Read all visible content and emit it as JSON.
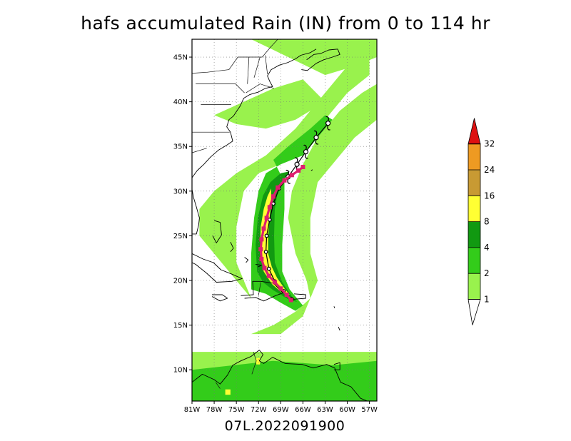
{
  "title": "hafs accumulated Rain (IN) from 0 to 114 hr",
  "subtitle": "07L.2022091900",
  "map": {
    "lon_range": [
      -81,
      -56
    ],
    "lat_range": [
      6.5,
      47
    ],
    "lon_ticks": [
      {
        "value": -81,
        "label": "81W"
      },
      {
        "value": -78,
        "label": "78W"
      },
      {
        "value": -75,
        "label": "75W"
      },
      {
        "value": -72,
        "label": "72W"
      },
      {
        "value": -69,
        "label": "69W"
      },
      {
        "value": -66,
        "label": "66W"
      },
      {
        "value": -63,
        "label": "63W"
      },
      {
        "value": -60,
        "label": "60W"
      },
      {
        "value": -57,
        "label": "57W"
      }
    ],
    "lat_ticks": [
      {
        "value": 10,
        "label": "10N"
      },
      {
        "value": 15,
        "label": "15N"
      },
      {
        "value": 20,
        "label": "20N"
      },
      {
        "value": 25,
        "label": "25N"
      },
      {
        "value": 30,
        "label": "30N"
      },
      {
        "value": 35,
        "label": "35N"
      },
      {
        "value": 40,
        "label": "40N"
      },
      {
        "value": 45,
        "label": "45N"
      }
    ],
    "grid": true
  },
  "colorbar": {
    "levels": [
      {
        "label": "1",
        "color": "#99f24d"
      },
      {
        "label": "2",
        "color": "#33cc1a"
      },
      {
        "label": "4",
        "color": "#119911"
      },
      {
        "label": "8",
        "color": "#ffff33"
      },
      {
        "label": "16",
        "color": "#c89a33"
      },
      {
        "label": "24",
        "color": "#ee9a22"
      },
      {
        "label": "32",
        "color": "#dd1111"
      }
    ]
  },
  "track": {
    "color": "#dd1f6e",
    "points": [
      {
        "lon": -67.6,
        "lat": 17.8
      },
      {
        "lon": -68.2,
        "lat": 18.4
      },
      {
        "lon": -69.0,
        "lat": 19.1
      },
      {
        "lon": -69.8,
        "lat": 19.8
      },
      {
        "lon": -70.6,
        "lat": 20.5
      },
      {
        "lon": -71.2,
        "lat": 21.4
      },
      {
        "lon": -71.6,
        "lat": 22.4
      },
      {
        "lon": -71.7,
        "lat": 23.5
      },
      {
        "lon": -71.6,
        "lat": 24.6
      },
      {
        "lon": -71.3,
        "lat": 25.8
      },
      {
        "lon": -70.9,
        "lat": 27.0
      },
      {
        "lon": -70.5,
        "lat": 28.2
      },
      {
        "lon": -70.0,
        "lat": 29.4
      },
      {
        "lon": -69.4,
        "lat": 30.4
      },
      {
        "lon": -68.5,
        "lat": 31.2
      },
      {
        "lon": -67.5,
        "lat": 31.8
      },
      {
        "lon": -66.6,
        "lat": 32.3
      },
      {
        "lon": -66.0,
        "lat": 32.7
      }
    ]
  },
  "best_track": {
    "color": "#000000",
    "points": [
      {
        "lon": -67.5,
        "lat": 17.9
      },
      {
        "lon": -68.6,
        "lat": 18.8
      },
      {
        "lon": -69.8,
        "lat": 19.9
      },
      {
        "lon": -70.6,
        "lat": 21.3
      },
      {
        "lon": -71.0,
        "lat": 23.2
      },
      {
        "lon": -70.9,
        "lat": 25.0
      },
      {
        "lon": -70.5,
        "lat": 26.8
      },
      {
        "lon": -70.0,
        "lat": 28.6
      },
      {
        "lon": -69.2,
        "lat": 30.3
      },
      {
        "lon": -68.0,
        "lat": 31.6
      },
      {
        "lon": -66.8,
        "lat": 33.0
      },
      {
        "lon": -65.6,
        "lat": 34.4
      },
      {
        "lon": -64.2,
        "lat": 36.0
      },
      {
        "lon": -62.6,
        "lat": 37.6
      }
    ]
  },
  "rain_bands": [
    {
      "level": "1",
      "poly": [
        [
          -81,
          12
        ],
        [
          -56,
          12
        ],
        [
          -56,
          6.5
        ],
        [
          -81,
          6.5
        ]
      ]
    },
    {
      "level": "2",
      "poly": [
        [
          -81,
          10
        ],
        [
          -70,
          11
        ],
        [
          -62,
          10.5
        ],
        [
          -56,
          11
        ],
        [
          -56,
          6.5
        ],
        [
          -81,
          6.5
        ]
      ]
    },
    {
      "level": "1",
      "poly": [
        [
          -73,
          14
        ],
        [
          -70,
          15
        ],
        [
          -67,
          16.5
        ],
        [
          -65,
          18
        ],
        [
          -65.5,
          20
        ],
        [
          -67,
          23
        ],
        [
          -68,
          27
        ],
        [
          -67.5,
          30
        ],
        [
          -66,
          33
        ],
        [
          -64,
          36
        ],
        [
          -61,
          39
        ],
        [
          -58,
          41
        ],
        [
          -56,
          42
        ],
        [
          -56,
          38
        ],
        [
          -59,
          36
        ],
        [
          -62,
          33
        ],
        [
          -64,
          31
        ],
        [
          -65,
          27
        ],
        [
          -65,
          23
        ],
        [
          -64,
          20
        ],
        [
          -66,
          16
        ],
        [
          -69,
          14
        ]
      ]
    },
    {
      "level": "1",
      "poly": [
        [
          -73,
          18
        ],
        [
          -75,
          22
        ],
        [
          -75,
          26
        ],
        [
          -74,
          30
        ],
        [
          -72,
          32
        ],
        [
          -69,
          33
        ],
        [
          -66,
          35
        ],
        [
          -63,
          38
        ],
        [
          -60,
          41
        ],
        [
          -57,
          43
        ],
        [
          -57,
          45
        ],
        [
          -60,
          44
        ],
        [
          -64,
          40
        ],
        [
          -67,
          37
        ],
        [
          -71,
          34
        ],
        [
          -75,
          32
        ],
        [
          -78,
          30
        ],
        [
          -80,
          28
        ],
        [
          -80,
          25
        ],
        [
          -77,
          22
        ],
        [
          -74,
          19
        ]
      ]
    },
    {
      "level": "1",
      "poly": [
        [
          -81,
          47
        ],
        [
          -73,
          47
        ],
        [
          -68,
          45
        ],
        [
          -63,
          43
        ],
        [
          -59,
          44
        ],
        [
          -56,
          45
        ],
        [
          -56,
          47
        ]
      ]
    },
    {
      "level": "1",
      "poly": [
        [
          -78,
          38.5
        ],
        [
          -74,
          40
        ],
        [
          -70,
          41.5
        ],
        [
          -66,
          42.5
        ],
        [
          -63,
          40
        ],
        [
          -67,
          38
        ],
        [
          -71,
          37
        ],
        [
          -75,
          37.5
        ]
      ]
    },
    {
      "level": "2",
      "poly": [
        [
          -73,
          19
        ],
        [
          -73,
          23
        ],
        [
          -72.6,
          27
        ],
        [
          -72,
          30
        ],
        [
          -71,
          32
        ],
        [
          -69,
          33
        ],
        [
          -66,
          34
        ],
        [
          -64,
          36
        ],
        [
          -62,
          38
        ],
        [
          -63,
          38.5
        ],
        [
          -65,
          37
        ],
        [
          -68,
          35
        ],
        [
          -70,
          33.5
        ],
        [
          -68.5,
          31
        ],
        [
          -68.5,
          28
        ],
        [
          -68.8,
          24
        ],
        [
          -68.8,
          21
        ],
        [
          -67.8,
          19
        ],
        [
          -66,
          17.2
        ],
        [
          -67,
          16.6
        ],
        [
          -69,
          17.5
        ],
        [
          -71,
          18.5
        ]
      ]
    },
    {
      "level": "4",
      "poly": [
        [
          -72.2,
          21
        ],
        [
          -72.4,
          24
        ],
        [
          -72.1,
          27
        ],
        [
          -71.4,
          29.5
        ],
        [
          -70.4,
          31
        ],
        [
          -69,
          32
        ],
        [
          -67.8,
          32.2
        ],
        [
          -69.3,
          30.5
        ],
        [
          -69.8,
          28
        ],
        [
          -69.9,
          25
        ],
        [
          -69.8,
          22
        ],
        [
          -68.8,
          19.8
        ],
        [
          -67.5,
          18.2
        ],
        [
          -66.8,
          17.6
        ],
        [
          -68,
          17.9
        ],
        [
          -70,
          18.9
        ],
        [
          -71.4,
          19.8
        ]
      ]
    },
    {
      "level": "8",
      "poly": [
        [
          -71.8,
          23
        ],
        [
          -71.7,
          26
        ],
        [
          -71.3,
          28
        ],
        [
          -70.8,
          29.4
        ],
        [
          -70.3,
          30.3
        ],
        [
          -70.3,
          29
        ],
        [
          -70.5,
          27
        ],
        [
          -70.7,
          25
        ],
        [
          -70.7,
          23
        ],
        [
          -70.2,
          21.5
        ],
        [
          -69.5,
          20.3
        ],
        [
          -68.4,
          19
        ],
        [
          -67.8,
          18.4
        ],
        [
          -68.8,
          18.6
        ],
        [
          -70.2,
          19.6
        ],
        [
          -71.3,
          21
        ]
      ]
    },
    {
      "level": "8",
      "poly": [
        [
          -76.5,
          7.2
        ],
        [
          -75.8,
          7.2
        ],
        [
          -75.8,
          7.8
        ],
        [
          -76.5,
          7.8
        ]
      ]
    },
    {
      "level": "8",
      "poly": [
        [
          -72.3,
          10.6
        ],
        [
          -71.8,
          10.6
        ],
        [
          -71.8,
          11.3
        ],
        [
          -72.3,
          11.3
        ]
      ]
    }
  ],
  "coastlines": [
    [
      [
        -81,
        25.2
      ],
      [
        -80.4,
        25.2
      ],
      [
        -80.1,
        26.2
      ],
      [
        -80.0,
        27.0
      ],
      [
        -80.4,
        28.2
      ],
      [
        -80.8,
        29.3
      ],
      [
        -81,
        30.2
      ]
    ],
    [
      [
        -81,
        31.5
      ],
      [
        -80.3,
        32.3
      ],
      [
        -79.4,
        33.0
      ],
      [
        -78.5,
        33.8
      ],
      [
        -77.4,
        34.6
      ],
      [
        -76.2,
        35.2
      ],
      [
        -75.5,
        35.6
      ],
      [
        -75.8,
        36.6
      ],
      [
        -76.3,
        37.2
      ],
      [
        -76.0,
        38.0
      ],
      [
        -75.4,
        38.4
      ],
      [
        -75.0,
        38.9
      ],
      [
        -74.5,
        39.5
      ],
      [
        -74.0,
        40.4
      ],
      [
        -73.2,
        40.8
      ],
      [
        -72.0,
        41.1
      ],
      [
        -71.1,
        41.5
      ],
      [
        -70.1,
        41.7
      ],
      [
        -70.5,
        42.3
      ],
      [
        -70.8,
        42.9
      ],
      [
        -70.3,
        43.6
      ],
      [
        -69.2,
        44.1
      ],
      [
        -68.0,
        44.4
      ],
      [
        -67.0,
        44.8
      ],
      [
        -66.3,
        45.2
      ],
      [
        -65.0,
        45.5
      ],
      [
        -64.2,
        45.9
      ]
    ],
    [
      [
        -66.2,
        43.6
      ],
      [
        -65.4,
        43.5
      ],
      [
        -64.2,
        44.3
      ],
      [
        -63.2,
        44.7
      ],
      [
        -62.0,
        45.0
      ],
      [
        -61.0,
        45.3
      ],
      [
        -61.3,
        45.9
      ],
      [
        -62.5,
        45.8
      ],
      [
        -63.6,
        45.4
      ],
      [
        -64.5,
        45.3
      ],
      [
        -65.5,
        44.7
      ]
    ],
    [
      [
        -81,
        23.0
      ],
      [
        -79.5,
        22.4
      ],
      [
        -78.1,
        22.0
      ],
      [
        -77.1,
        21.2
      ],
      [
        -75.6,
        20.7
      ],
      [
        -74.2,
        20.2
      ],
      [
        -75.6,
        19.9
      ],
      [
        -77.7,
        19.8
      ],
      [
        -79.0,
        20.8
      ],
      [
        -80.5,
        21.8
      ],
      [
        -81,
        22.0
      ]
    ],
    [
      [
        -74.4,
        18.3
      ],
      [
        -72.7,
        18.4
      ],
      [
        -72.8,
        19.9
      ],
      [
        -71.7,
        19.9
      ],
      [
        -70.0,
        19.7
      ],
      [
        -68.7,
        18.6
      ],
      [
        -69.7,
        18.3
      ],
      [
        -71.3,
        17.7
      ],
      [
        -72.4,
        18.1
      ],
      [
        -73.9,
        18.0
      ]
    ],
    [
      [
        -78.3,
        18.4
      ],
      [
        -76.9,
        18.4
      ],
      [
        -76.2,
        18.0
      ],
      [
        -77.2,
        17.7
      ],
      [
        -78.3,
        18.2
      ]
    ],
    [
      [
        -67.2,
        18.5
      ],
      [
        -65.6,
        18.4
      ],
      [
        -65.6,
        18.0
      ],
      [
        -67.2,
        17.9
      ]
    ],
    [
      [
        -81,
        8.6
      ],
      [
        -79.6,
        9.5
      ],
      [
        -78.0,
        8.9
      ],
      [
        -77.2,
        8.4
      ],
      [
        -76.2,
        9.4
      ],
      [
        -75.5,
        10.5
      ],
      [
        -74.4,
        11.0
      ],
      [
        -73.0,
        11.5
      ],
      [
        -71.9,
        12.2
      ],
      [
        -71.4,
        11.7
      ],
      [
        -71.9,
        11.0
      ],
      [
        -71.3,
        10.7
      ],
      [
        -70.1,
        11.4
      ],
      [
        -68.4,
        10.7
      ],
      [
        -66.1,
        10.6
      ],
      [
        -64.6,
        10.2
      ],
      [
        -62.8,
        10.6
      ],
      [
        -61.7,
        10.2
      ],
      [
        -60.9,
        8.6
      ],
      [
        -59.5,
        8.1
      ],
      [
        -58.2,
        6.8
      ],
      [
        -57.3,
        6.5
      ]
    ],
    [
      [
        -61.8,
        10.0
      ],
      [
        -61.0,
        10.0
      ],
      [
        -61.0,
        10.8
      ],
      [
        -61.8,
        10.6
      ]
    ],
    [
      [
        -78.0,
        26.7
      ],
      [
        -77.2,
        26.5
      ],
      [
        -77.0,
        25.1
      ],
      [
        -77.7,
        24.2
      ],
      [
        -78.2,
        25.0
      ]
    ],
    [
      [
        -75.8,
        24.3
      ],
      [
        -75.4,
        23.6
      ],
      [
        -75.8,
        23.2
      ]
    ],
    [
      [
        -72.4,
        21.8
      ],
      [
        -71.6,
        21.7
      ],
      [
        -72.1,
        21.5
      ]
    ],
    [
      [
        -73.9,
        22.6
      ],
      [
        -73.4,
        22.3
      ],
      [
        -73.7,
        22.0
      ]
    ],
    [
      [
        -61.8,
        17.1
      ],
      [
        -61.7,
        16.9
      ]
    ],
    [
      [
        -61.2,
        14.8
      ],
      [
        -61.0,
        14.4
      ]
    ],
    [
      [
        -64.9,
        32.3
      ],
      [
        -64.7,
        32.4
      ]
    ]
  ],
  "boundaries": [
    [
      [
        -81,
        43.2
      ],
      [
        -79.0,
        43.3
      ],
      [
        -76.0,
        43.6
      ],
      [
        -74.8,
        45.0
      ],
      [
        -71.5,
        45.0
      ],
      [
        -70.5,
        46.0
      ],
      [
        -69.4,
        47.0
      ]
    ],
    [
      [
        -80.5,
        42.0
      ],
      [
        -75.1,
        42.0
      ],
      [
        -73.9,
        41.0
      ]
    ],
    [
      [
        -79.8,
        39.7
      ],
      [
        -75.7,
        39.7
      ]
    ],
    [
      [
        -81,
        36.6
      ],
      [
        -75.9,
        36.6
      ]
    ],
    [
      [
        -73.3,
        45.0
      ],
      [
        -73.5,
        42.0
      ]
    ],
    [
      [
        -71.8,
        45.0
      ],
      [
        -72.6,
        42.7
      ]
    ],
    [
      [
        -70.8,
        43.1
      ],
      [
        -71.1,
        45.2
      ]
    ],
    [
      [
        -73.7,
        41.0
      ],
      [
        -71.8,
        42.0
      ],
      [
        -69.9,
        41.5
      ]
    ],
    [
      [
        -81,
        34.3
      ],
      [
        -79.0,
        34.8
      ]
    ],
    [
      [
        -72.0,
        18.3
      ],
      [
        -71.7,
        19.8
      ]
    ],
    [
      [
        -72.7,
        12.0
      ],
      [
        -72.3,
        11.0
      ],
      [
        -72.9,
        9.5
      ]
    ],
    [
      [
        -77.2,
        7.9
      ],
      [
        -77.8,
        8.6
      ]
    ]
  ]
}
